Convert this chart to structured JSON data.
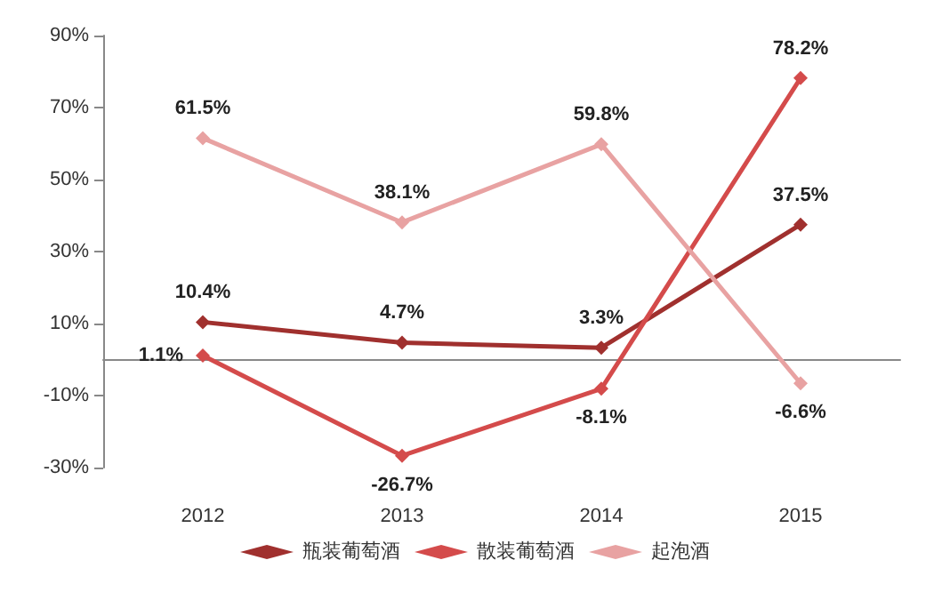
{
  "chart_data": {
    "type": "line",
    "categories": [
      "2012",
      "2013",
      "2014",
      "2015"
    ],
    "series": [
      {
        "name": "瓶装葡萄酒",
        "color": "#a0302e",
        "values": [
          10.4,
          4.7,
          3.3,
          37.5
        ],
        "value_labels": [
          "10.4%",
          "4.7%",
          "3.3%",
          "37.5%"
        ]
      },
      {
        "name": "散装葡萄酒",
        "color": "#d44b4b",
        "values": [
          1.1,
          -26.7,
          -8.1,
          78.2
        ],
        "value_labels": [
          "1.1%",
          "-26.7%",
          "-8.1%",
          "78.2%"
        ]
      },
      {
        "name": "起泡酒",
        "color": "#e8a2a2",
        "values": [
          61.5,
          38.1,
          59.8,
          -6.6
        ],
        "value_labels": [
          "61.5%",
          "38.1%",
          "59.8%",
          "-6.6%"
        ]
      }
    ],
    "ylim": [
      -30,
      90
    ],
    "yticks": [
      {
        "value": -30,
        "label": "-30%"
      },
      {
        "value": -10,
        "label": "-10%"
      },
      {
        "value": 10,
        "label": "10%"
      },
      {
        "value": 30,
        "label": "30%"
      },
      {
        "value": 50,
        "label": "50%"
      },
      {
        "value": 70,
        "label": "70%"
      },
      {
        "value": 90,
        "label": "90%"
      }
    ],
    "grid": false,
    "legend": "bottom",
    "marker": "diamond",
    "line_style": "solid"
  }
}
